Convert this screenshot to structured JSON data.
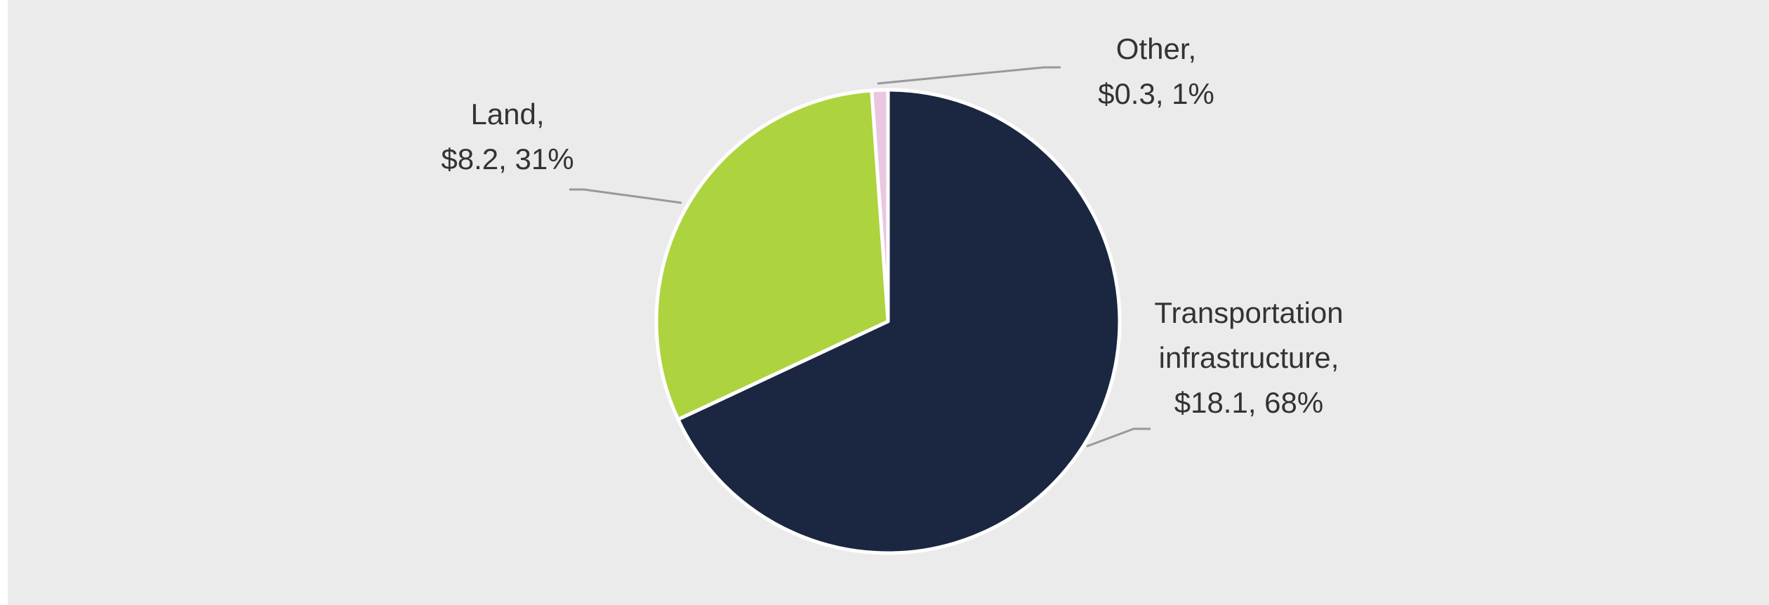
{
  "chart_data": {
    "type": "pie",
    "categories": [
      "Transportation infrastructure,",
      "Land,",
      "Other,"
    ],
    "values": [
      18.1,
      8.2,
      0.3
    ],
    "value_labels": [
      "$18.1, 68%",
      "$8.2, 31%",
      "$0.3, 1%"
    ],
    "colors": [
      "#1b2640",
      "#add33f",
      "#e9c7e1"
    ]
  }
}
